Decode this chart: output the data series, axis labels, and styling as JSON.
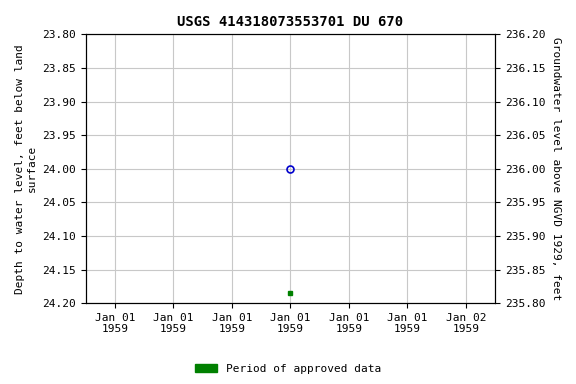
{
  "title": "USGS 414318073553701 DU 670",
  "xtick_labels": [
    "Jan 01\n1959",
    "Jan 01\n1959",
    "Jan 01\n1959",
    "Jan 01\n1959",
    "Jan 01\n1959",
    "Jan 01\n1959",
    "Jan 02\n1959"
  ],
  "ylim_left": [
    23.8,
    24.2
  ],
  "ylim_right": [
    236.2,
    235.8
  ],
  "yticks_left": [
    23.8,
    23.85,
    23.9,
    23.95,
    24.0,
    24.05,
    24.1,
    24.15,
    24.2
  ],
  "yticks_right": [
    236.2,
    236.15,
    236.1,
    236.05,
    236.0,
    235.95,
    235.9,
    235.85,
    235.8
  ],
  "ylabel_left": "Depth to water level, feet below land\nsurface",
  "ylabel_right": "Groundwater level above NGVD 1929, feet",
  "xlim": [
    -0.5,
    6.5
  ],
  "point_open_x": 3,
  "point_open_y": 24.0,
  "point_open_color": "#0000cc",
  "point_filled_x": 3,
  "point_filled_y": 24.185,
  "point_filled_color": "#008000",
  "legend_label": "Period of approved data",
  "legend_color": "#008000",
  "background_color": "#ffffff",
  "grid_color": "#c8c8c8",
  "title_fontsize": 10,
  "label_fontsize": 8,
  "tick_fontsize": 8,
  "font_family": "monospace"
}
